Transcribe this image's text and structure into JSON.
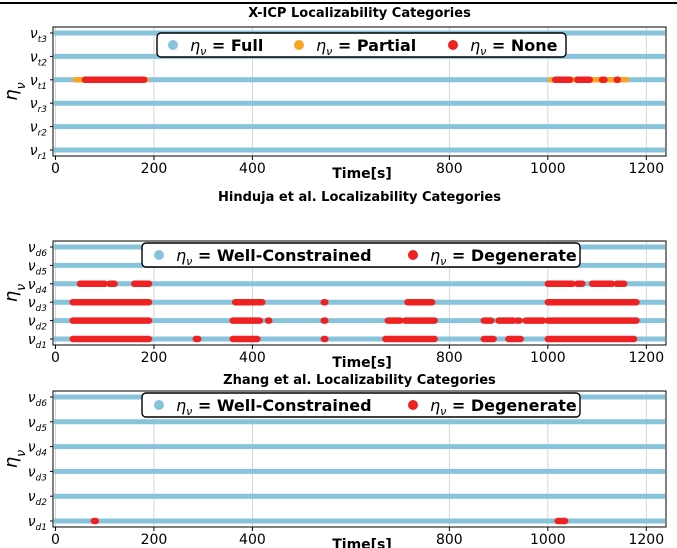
{
  "colors": {
    "full": "#87c4dc",
    "partial": "#f5a623",
    "none": "#ee2222",
    "grid": "#cccccc",
    "frame": "#000000"
  },
  "chart_data": [
    {
      "type": "scatter",
      "title": "X-ICP Localizability Categories",
      "xlabel": "Time[s]",
      "ylabel": "η_ν",
      "xlim": [
        -5,
        1240
      ],
      "xticks": [
        0,
        200,
        400,
        800,
        1000,
        1200
      ],
      "xtick_labels": [
        "0",
        "200",
        "400",
        "800",
        "1000",
        "1200"
      ],
      "grid": true,
      "legend_position": "top-center",
      "legend": [
        "η_ν = Full",
        "η_ν = Partial",
        "η_ν = None"
      ],
      "rows": [
        {
          "label": "ν_t3",
          "base": "ν",
          "sub": "t3",
          "band": "Full",
          "partial": [],
          "none": []
        },
        {
          "label": "ν_t2",
          "base": "ν",
          "sub": "t2",
          "band": "Full",
          "partial": [],
          "none": []
        },
        {
          "label": "ν_t1",
          "base": "ν",
          "sub": "t1",
          "band": "Full",
          "partial": [
            [
              40,
              185
            ],
            [
              1005,
              1160
            ]
          ],
          "none": [
            [
              60,
              180
            ],
            [
              1015,
              1045
            ],
            [
              1060,
              1085
            ],
            [
              1110,
              1115
            ],
            [
              1140,
              1142
            ]
          ]
        },
        {
          "label": "ν_r3",
          "base": "ν",
          "sub": "r3",
          "band": "Full",
          "partial": [],
          "none": []
        },
        {
          "label": "ν_r2",
          "base": "ν",
          "sub": "r2",
          "band": "Full",
          "partial": [],
          "none": []
        },
        {
          "label": "ν_r1",
          "base": "ν",
          "sub": "r1",
          "band": "Full",
          "partial": [],
          "none": []
        }
      ]
    },
    {
      "type": "scatter",
      "title": "Hinduja et al. Localizability Categories",
      "xlabel": "Time[s]",
      "ylabel": "η_ν",
      "xlim": [
        -5,
        1240
      ],
      "xticks": [
        0,
        200,
        400,
        800,
        1000,
        1200
      ],
      "xtick_labels": [
        "0",
        "200",
        "400",
        "800",
        "1000",
        "1200"
      ],
      "grid": true,
      "legend_position": "top-center",
      "legend": [
        "η_ν = Well-Constrained",
        "η_ν = Degenerate"
      ],
      "rows": [
        {
          "label": "ν_d6",
          "base": "ν",
          "sub": "d6",
          "band": "Well-Constrained",
          "none": []
        },
        {
          "label": "ν_d5",
          "base": "ν",
          "sub": "d5",
          "band": "Well-Constrained",
          "none": []
        },
        {
          "label": "ν_d4",
          "base": "ν",
          "sub": "d4",
          "band": "Well-Constrained",
          "none": [
            [
              50,
              100
            ],
            [
              110,
              120
            ],
            [
              160,
              190
            ],
            [
              1000,
              1050
            ],
            [
              1060,
              1070
            ],
            [
              1090,
              1130
            ],
            [
              1140,
              1155
            ]
          ]
        },
        {
          "label": "ν_d3",
          "base": "ν",
          "sub": "d3",
          "band": "Well-Constrained",
          "none": [
            [
              35,
              190
            ],
            [
              365,
              420
            ],
            [
              545,
              548
            ],
            [
              715,
              765
            ],
            [
              1000,
              1180
            ]
          ]
        },
        {
          "label": "ν_d2",
          "base": "ν",
          "sub": "d2",
          "band": "Well-Constrained",
          "none": [
            [
              35,
              190
            ],
            [
              360,
              415
            ],
            [
              432,
              434
            ],
            [
              545,
              548
            ],
            [
              675,
              700
            ],
            [
              710,
              730
            ],
            [
              735,
              770
            ],
            [
              870,
              885
            ],
            [
              900,
              930
            ],
            [
              938,
              942
            ],
            [
              955,
              990
            ],
            [
              1000,
              1180
            ]
          ]
        },
        {
          "label": "ν_d1",
          "base": "ν",
          "sub": "d1",
          "band": "Well-Constrained",
          "none": [
            [
              35,
              190
            ],
            [
              285,
              290
            ],
            [
              360,
              410
            ],
            [
              545,
              548
            ],
            [
              670,
              770
            ],
            [
              870,
              890
            ],
            [
              920,
              945
            ],
            [
              1000,
              1175
            ]
          ]
        }
      ]
    },
    {
      "type": "scatter",
      "title": "Zhang et al. Localizability Categories",
      "xlabel": "Time[s]",
      "ylabel": "η_ν",
      "xlim": [
        -5,
        1240
      ],
      "xticks": [
        0,
        200,
        400,
        800,
        1000,
        1200
      ],
      "xtick_labels": [
        "0",
        "200",
        "400",
        "800",
        "1000",
        "1200"
      ],
      "grid": true,
      "legend_position": "top-center",
      "legend": [
        "η_ν = Well-Constrained",
        "η_ν = Degenerate"
      ],
      "rows": [
        {
          "label": "ν_d6",
          "base": "ν",
          "sub": "d6",
          "band": "Well-Constrained",
          "none": []
        },
        {
          "label": "ν_d5",
          "base": "ν",
          "sub": "d5",
          "band": "Well-Constrained",
          "none": []
        },
        {
          "label": "ν_d4",
          "base": "ν",
          "sub": "d4",
          "band": "Well-Constrained",
          "none": []
        },
        {
          "label": "ν_d3",
          "base": "ν",
          "sub": "d3",
          "band": "Well-Constrained",
          "none": []
        },
        {
          "label": "ν_d2",
          "base": "ν",
          "sub": "d2",
          "band": "Well-Constrained",
          "none": []
        },
        {
          "label": "ν_d1",
          "base": "ν",
          "sub": "d1",
          "band": "Well-Constrained",
          "none": [
            [
              78,
              82
            ],
            [
              1020,
              1035
            ]
          ]
        }
      ]
    }
  ]
}
